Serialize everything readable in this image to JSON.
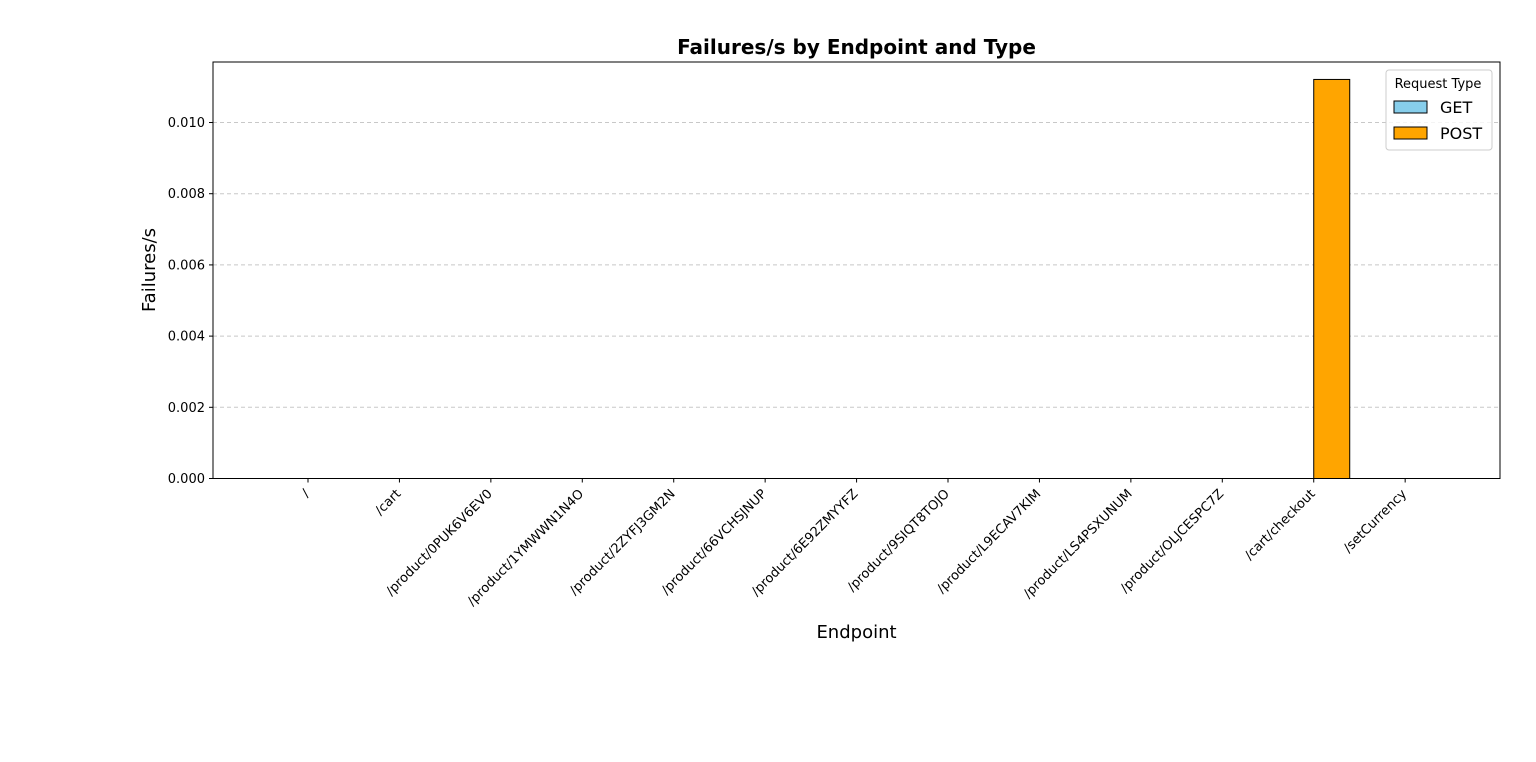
{
  "chart_data": {
    "type": "bar",
    "title": "Failures/s by Endpoint and Type",
    "xlabel": "Endpoint",
    "ylabel": "Failures/s",
    "categories": [
      "/",
      "/cart",
      "/product/0PUK6V6EV0",
      "/product/1YMWWN1N4O",
      "/product/2ZYFJ3GM2N",
      "/product/66VCHSJNUP",
      "/product/6E92ZMYYFZ",
      "/product/9SIQT8TOJO",
      "/product/L9ECAV7KIM",
      "/product/LS4PSXUNUM",
      "/product/OLJCESPC7Z",
      "/cart/checkout",
      "/setCurrency"
    ],
    "series": [
      {
        "name": "GET",
        "color": "#87ceeb",
        "values": [
          0,
          0,
          0,
          0,
          0,
          0,
          0,
          0,
          0,
          0,
          0,
          0,
          0
        ]
      },
      {
        "name": "POST",
        "color": "#ffa500",
        "values": [
          0,
          0,
          0,
          0,
          0,
          0,
          0,
          0,
          0,
          0,
          0,
          0.01121,
          0
        ]
      }
    ],
    "ylim": [
      0,
      0.0117
    ],
    "yticks": [
      "0.000",
      "0.002",
      "0.004",
      "0.006",
      "0.008",
      "0.010"
    ],
    "grid": "y-dashed",
    "legend": {
      "title": "Request Type",
      "placement": "top-right"
    }
  }
}
